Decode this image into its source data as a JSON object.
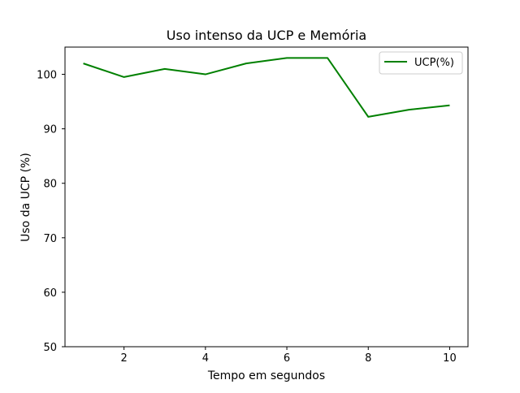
{
  "chart_data": {
    "type": "line",
    "title": "Uso intenso da UCP e Memória",
    "xlabel": "Tempo em segundos",
    "ylabel": "Uso da UCP (%)",
    "xlim": [
      0.55,
      10.45
    ],
    "ylim": [
      50,
      105
    ],
    "x_ticks": [
      2,
      4,
      6,
      8,
      10
    ],
    "y_ticks": [
      50,
      60,
      70,
      80,
      90,
      100
    ],
    "grid": false,
    "legend_position": "top-right",
    "series": [
      {
        "name": "UCP(%)",
        "color": "#008000",
        "x": [
          1,
          2,
          3,
          4,
          5,
          6,
          7,
          8,
          9,
          10
        ],
        "y": [
          102,
          99.5,
          101,
          100,
          102,
          103,
          103,
          92.2,
          93.5,
          94.3
        ]
      }
    ]
  }
}
